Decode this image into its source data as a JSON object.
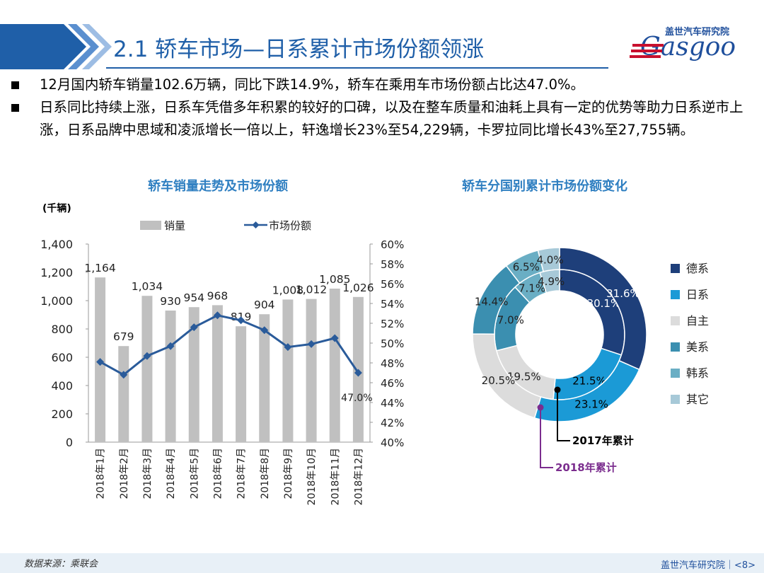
{
  "header": {
    "title": "2.1 轿车市场—日系累计市场份额领涨",
    "logo_cn": "盖世汽车研究院",
    "logo_en": "Gasgoo"
  },
  "bullets": [
    "12月国内轿车销量102.6万辆，同比下跌14.9%，轿车在乘用车市场份额占比达47.0%。",
    "日系同比持续上涨，日系车凭借多年积累的较好的口碑，以及在整车质量和油耗上具有一定的优势等助力日系逆市上涨，日系品牌中思域和凌派增长一倍以上，轩逸增长23%至54,229辆，卡罗拉同比增长43%至27,755辆。"
  ],
  "footer": {
    "source": "数据来源：乘联会",
    "page": "盖世汽车研究院｜<8>"
  },
  "chart_data": [
    {
      "type": "bar",
      "title": "轿车销量走势及市场份额",
      "unit_label": "(千辆)",
      "categories": [
        "2018年1月",
        "2018年2月",
        "2018年3月",
        "2018年4月",
        "2018年5月",
        "2018年6月",
        "2018年7月",
        "2018年8月",
        "2018年9月",
        "2018年10月",
        "2018年11月",
        "2018年12月"
      ],
      "series": [
        {
          "name": "销量",
          "kind": "bar",
          "axis": "left",
          "color": "#c0c0c0",
          "values": [
            1164,
            679,
            1034,
            930,
            954,
            968,
            819,
            904,
            1008,
            1012,
            1085,
            1026
          ]
        },
        {
          "name": "市场份额",
          "kind": "line",
          "axis": "right",
          "color": "#2a5b9a",
          "values": [
            48.1,
            46.8,
            48.7,
            49.7,
            51.6,
            52.8,
            52.3,
            51.3,
            49.6,
            49.9,
            50.5,
            47.0
          ]
        }
      ],
      "bar_labels": [
        "1,164",
        "679",
        "1,034",
        "930",
        "954",
        "968",
        "819",
        "904",
        "1,008",
        "1,012",
        "1,085",
        "1,026"
      ],
      "line_label": {
        "index": 11,
        "text": "47.0%"
      },
      "ylim_left": [
        0,
        1400
      ],
      "yticks_left": [
        "0",
        "200",
        "400",
        "600",
        "800",
        "1,000",
        "1,200",
        "1,400"
      ],
      "ylim_right": [
        40,
        60
      ],
      "yticks_right": [
        "40%",
        "42%",
        "44%",
        "46%",
        "48%",
        "50%",
        "52%",
        "54%",
        "56%",
        "58%",
        "60%"
      ],
      "legend_position": "top"
    },
    {
      "type": "pie",
      "title": "轿车分国别累计市场份额变化",
      "categories": [
        "德系",
        "日系",
        "自主",
        "美系",
        "韩系",
        "其它"
      ],
      "colors": [
        "#1e3f7a",
        "#1b9ad6",
        "#dcdcdc",
        "#3b8fb0",
        "#6aaec4",
        "#a7c9d8"
      ],
      "series": [
        {
          "name": "2017年累计",
          "ring": "inner",
          "values": [
            30.1,
            21.5,
            19.5,
            17.0,
            7.1,
            4.9
          ]
        },
        {
          "name": "2018年累计",
          "ring": "outer",
          "values": [
            31.6,
            23.1,
            20.5,
            14.4,
            6.5,
            4.0
          ]
        }
      ],
      "value_labels_inner": [
        "30.1%",
        "21.5%",
        "19.5%",
        "17.0%",
        "7.1%",
        "4.9%"
      ],
      "value_labels_outer": [
        "31.6%",
        "23.1%",
        "20.5%",
        "14.4%",
        "6.5%",
        "4.0%"
      ],
      "annotations": [
        "2017年累计",
        "2018年累计"
      ],
      "legend_position": "right"
    }
  ]
}
